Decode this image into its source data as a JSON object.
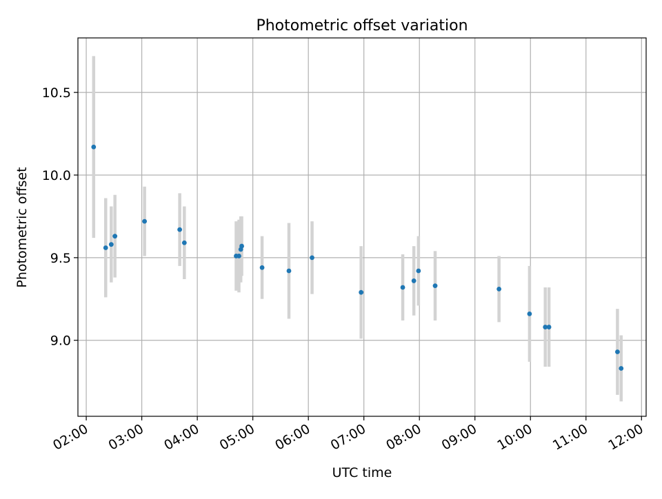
{
  "chart_data": {
    "type": "scatter",
    "title": "Photometric offset variation",
    "xlabel": "UTC time",
    "ylabel": "Photometric offset",
    "x_unit": "UTC hours",
    "xlim": [
      "01:51",
      "12:05"
    ],
    "ylim": [
      8.54,
      10.83
    ],
    "x_ticks": [
      "02:00",
      "03:00",
      "04:00",
      "05:00",
      "06:00",
      "07:00",
      "08:00",
      "09:00",
      "10:00",
      "11:00",
      "12:00"
    ],
    "y_ticks": [
      "9.0",
      "9.5",
      "10.0",
      "10.5"
    ],
    "grid": true,
    "marker_color": "#1f77b4",
    "errorbar_color": "#d3d3d3",
    "points": [
      {
        "x": "02:08",
        "y": 10.17,
        "err": 0.55
      },
      {
        "x": "02:21",
        "y": 9.56,
        "err": 0.3
      },
      {
        "x": "02:27",
        "y": 9.58,
        "err": 0.23
      },
      {
        "x": "02:31",
        "y": 9.63,
        "err": 0.25
      },
      {
        "x": "03:03",
        "y": 9.72,
        "err": 0.21
      },
      {
        "x": "03:41",
        "y": 9.67,
        "err": 0.22
      },
      {
        "x": "03:46",
        "y": 9.59,
        "err": 0.22
      },
      {
        "x": "04:42",
        "y": 9.51,
        "err": 0.21
      },
      {
        "x": "04:45",
        "y": 9.51,
        "err": 0.22
      },
      {
        "x": "04:47",
        "y": 9.55,
        "err": 0.2
      },
      {
        "x": "04:48",
        "y": 9.57,
        "err": 0.18
      },
      {
        "x": "05:10",
        "y": 9.44,
        "err": 0.19
      },
      {
        "x": "05:39",
        "y": 9.42,
        "err": 0.29
      },
      {
        "x": "06:04",
        "y": 9.5,
        "err": 0.22
      },
      {
        "x": "06:57",
        "y": 9.29,
        "err": 0.28
      },
      {
        "x": "07:42",
        "y": 9.32,
        "err": 0.2
      },
      {
        "x": "07:54",
        "y": 9.36,
        "err": 0.21
      },
      {
        "x": "07:59",
        "y": 9.42,
        "err": 0.21
      },
      {
        "x": "08:17",
        "y": 9.33,
        "err": 0.21
      },
      {
        "x": "09:26",
        "y": 9.31,
        "err": 0.2
      },
      {
        "x": "09:59",
        "y": 9.16,
        "err": 0.29
      },
      {
        "x": "10:16",
        "y": 9.08,
        "err": 0.24
      },
      {
        "x": "10:20",
        "y": 9.08,
        "err": 0.24
      },
      {
        "x": "11:34",
        "y": 8.93,
        "err": 0.26
      },
      {
        "x": "11:38",
        "y": 8.83,
        "err": 0.2
      }
    ]
  }
}
